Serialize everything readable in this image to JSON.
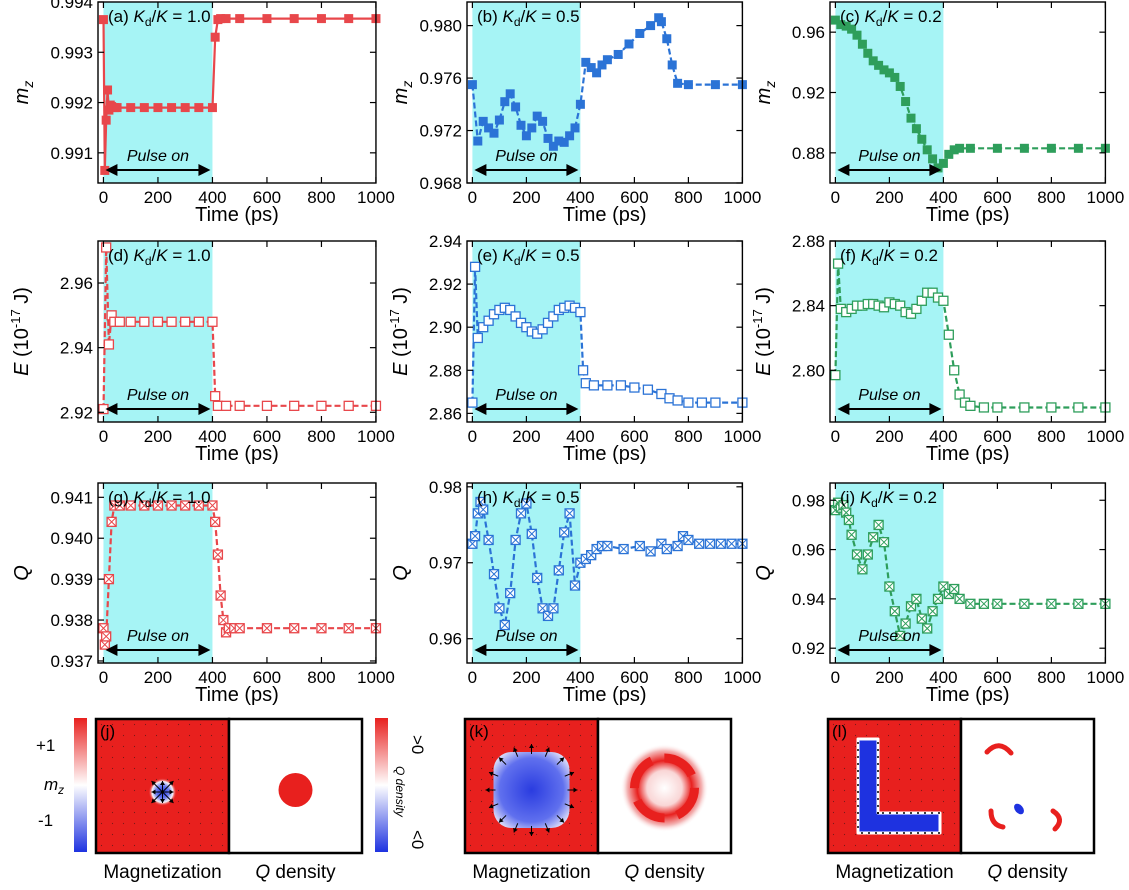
{
  "colors": {
    "red": "#E8474B",
    "blue": "#2B73D6",
    "green": "#2E9E5B",
    "pulse": "#A6F4F5",
    "map_red": "#E8201E",
    "map_blue": "#1E32E0"
  },
  "chart_data": [
    {
      "id": "a",
      "type": "line",
      "panel_label": "(a) ",
      "ratio": " = 1.0",
      "color": "red",
      "marker": "filled-square",
      "ylabel": "m",
      "ylabel_sub": "z",
      "xlabel": "Time (ps)",
      "ylim": [
        0.9904,
        0.994
      ],
      "yticks": [
        0.991,
        0.992,
        0.993,
        0.994
      ],
      "ytick_labels": [
        "0.991",
        "0.992",
        "0.993",
        "0.994"
      ],
      "xlim": [
        -20,
        1000
      ],
      "xticks": [
        0,
        200,
        400,
        600,
        800,
        1000
      ],
      "pulse": [
        0,
        400
      ],
      "pulse_label": "Pulse on",
      "x": [
        0,
        5,
        10,
        15,
        20,
        25,
        30,
        40,
        50,
        100,
        150,
        200,
        250,
        300,
        350,
        400,
        410,
        420,
        430,
        450,
        500,
        600,
        700,
        800,
        900,
        1000
      ],
      "y": [
        0.99365,
        0.99065,
        0.99165,
        0.99225,
        0.99185,
        0.99195,
        0.99192,
        0.9919,
        0.9919,
        0.9919,
        0.9919,
        0.9919,
        0.9919,
        0.9919,
        0.9919,
        0.9919,
        0.9933,
        0.99365,
        0.99367,
        0.99367,
        0.99367,
        0.99367,
        0.99367,
        0.99367,
        0.99367,
        0.99367
      ]
    },
    {
      "id": "b",
      "type": "line",
      "panel_label": "(b) ",
      "ratio": " = 0.5",
      "color": "blue",
      "marker": "filled-square",
      "ylabel": "m",
      "ylabel_sub": "z",
      "xlabel": "Time (ps)",
      "ylim": [
        0.968,
        0.9818
      ],
      "yticks": [
        0.968,
        0.972,
        0.976,
        0.98
      ],
      "ytick_labels": [
        "0.968",
        "0.972",
        "0.976",
        "0.980"
      ],
      "xlim": [
        -20,
        1000
      ],
      "xticks": [
        0,
        200,
        400,
        600,
        800,
        1000
      ],
      "pulse": [
        0,
        400
      ],
      "pulse_label": "Pulse on",
      "x": [
        0,
        20,
        40,
        60,
        80,
        100,
        120,
        140,
        160,
        180,
        200,
        220,
        240,
        260,
        280,
        300,
        320,
        340,
        360,
        380,
        400,
        420,
        440,
        460,
        480,
        500,
        540,
        580,
        620,
        660,
        690,
        700,
        720,
        740,
        760,
        800,
        900,
        1000
      ],
      "y": [
        0.9755,
        0.9712,
        0.9727,
        0.9722,
        0.9718,
        0.9728,
        0.9742,
        0.9748,
        0.9738,
        0.9724,
        0.9716,
        0.9722,
        0.9731,
        0.9727,
        0.9714,
        0.9708,
        0.9712,
        0.9711,
        0.9716,
        0.9722,
        0.974,
        0.9772,
        0.9768,
        0.9764,
        0.977,
        0.9774,
        0.9778,
        0.9786,
        0.9794,
        0.98,
        0.9806,
        0.9803,
        0.979,
        0.977,
        0.9756,
        0.9755,
        0.9755,
        0.9755
      ]
    },
    {
      "id": "c",
      "type": "line",
      "panel_label": "(c) ",
      "ratio": " = 0.2",
      "color": "green",
      "marker": "filled-square",
      "ylabel": "m",
      "ylabel_sub": "z",
      "xlabel": "Time (ps)",
      "ylim": [
        0.86,
        0.98
      ],
      "yticks": [
        0.88,
        0.92,
        0.96
      ],
      "ytick_labels": [
        "0.88",
        "0.92",
        "0.96"
      ],
      "xlim": [
        -20,
        1000
      ],
      "xticks": [
        0,
        200,
        400,
        600,
        800,
        1000
      ],
      "pulse": [
        0,
        400
      ],
      "pulse_label": "Pulse on",
      "x": [
        0,
        20,
        40,
        60,
        80,
        100,
        120,
        140,
        160,
        180,
        200,
        220,
        240,
        260,
        280,
        300,
        320,
        340,
        360,
        380,
        400,
        420,
        440,
        460,
        500,
        600,
        700,
        800,
        900,
        1000
      ],
      "y": [
        0.968,
        0.965,
        0.964,
        0.962,
        0.958,
        0.952,
        0.946,
        0.941,
        0.938,
        0.935,
        0.933,
        0.93,
        0.924,
        0.914,
        0.903,
        0.896,
        0.889,
        0.882,
        0.876,
        0.87,
        0.873,
        0.879,
        0.882,
        0.883,
        0.883,
        0.883,
        0.883,
        0.883,
        0.883,
        0.883
      ]
    },
    {
      "id": "d",
      "type": "line",
      "panel_label": "(d) ",
      "ratio": " = 1.0",
      "color": "red",
      "marker": "open-square",
      "ylabel": "E",
      "ylabel_unit": " (10",
      "ylabel_exp": "-17",
      "ylabel_tail": " J)",
      "xlabel": "Time (ps)",
      "ylim": [
        2.917,
        2.973
      ],
      "yticks": [
        2.92,
        2.94,
        2.96
      ],
      "ytick_labels": [
        "2.92",
        "2.94",
        "2.96"
      ],
      "xlim": [
        -20,
        1000
      ],
      "xticks": [
        0,
        200,
        400,
        600,
        800,
        1000
      ],
      "pulse": [
        0,
        400
      ],
      "pulse_label": "Pulse on",
      "x": [
        0,
        10,
        20,
        30,
        40,
        60,
        100,
        150,
        200,
        250,
        300,
        350,
        400,
        410,
        420,
        450,
        500,
        600,
        700,
        800,
        900,
        1000
      ],
      "y": [
        2.921,
        2.971,
        2.941,
        2.95,
        2.948,
        2.948,
        2.948,
        2.948,
        2.948,
        2.948,
        2.948,
        2.948,
        2.948,
        2.925,
        2.922,
        2.922,
        2.922,
        2.922,
        2.922,
        2.922,
        2.922,
        2.922
      ]
    },
    {
      "id": "e",
      "type": "line",
      "panel_label": "(e) ",
      "ratio": " = 0.5",
      "color": "blue",
      "marker": "open-square",
      "ylabel": "E",
      "ylabel_unit": " (10",
      "ylabel_exp": "-17",
      "ylabel_tail": " J)",
      "xlabel": "Time (ps)",
      "ylim": [
        2.856,
        2.94
      ],
      "yticks": [
        2.86,
        2.88,
        2.9,
        2.92,
        2.94
      ],
      "ytick_labels": [
        "2.86",
        "2.88",
        "2.90",
        "2.92",
        "2.94"
      ],
      "xlim": [
        -20,
        1000
      ],
      "xticks": [
        0,
        200,
        400,
        600,
        800,
        1000
      ],
      "pulse": [
        0,
        400
      ],
      "pulse_label": "Pulse on",
      "x": [
        0,
        10,
        20,
        40,
        60,
        80,
        100,
        120,
        140,
        160,
        180,
        200,
        220,
        240,
        260,
        280,
        300,
        320,
        340,
        360,
        380,
        400,
        410,
        420,
        450,
        500,
        550,
        600,
        650,
        700,
        730,
        760,
        800,
        850,
        900,
        1000
      ],
      "y": [
        2.865,
        2.928,
        2.895,
        2.9,
        2.903,
        2.906,
        2.908,
        2.909,
        2.908,
        2.905,
        2.902,
        2.9,
        2.898,
        2.897,
        2.899,
        2.902,
        2.905,
        2.908,
        2.909,
        2.91,
        2.909,
        2.907,
        2.88,
        2.874,
        2.873,
        2.873,
        2.873,
        2.872,
        2.871,
        2.869,
        2.867,
        2.866,
        2.865,
        2.865,
        2.865,
        2.865
      ]
    },
    {
      "id": "f",
      "type": "line",
      "panel_label": "(f) ",
      "ratio": " = 0.2",
      "color": "green",
      "marker": "open-square",
      "ylabel": "E",
      "ylabel_unit": " (10",
      "ylabel_exp": "-17",
      "ylabel_tail": " J)",
      "xlabel": "Time (ps)",
      "ylim": [
        2.768,
        2.88
      ],
      "yticks": [
        2.8,
        2.84,
        2.88
      ],
      "ytick_labels": [
        "2.80",
        "2.84",
        "2.88"
      ],
      "xlim": [
        -20,
        1000
      ],
      "xticks": [
        0,
        200,
        400,
        600,
        800,
        1000
      ],
      "pulse": [
        0,
        400
      ],
      "pulse_label": "Pulse on",
      "x": [
        0,
        10,
        20,
        40,
        60,
        80,
        100,
        120,
        140,
        160,
        180,
        200,
        220,
        240,
        260,
        280,
        300,
        320,
        340,
        360,
        380,
        400,
        420,
        440,
        460,
        480,
        500,
        550,
        600,
        700,
        800,
        900,
        1000
      ],
      "y": [
        2.797,
        2.866,
        2.838,
        2.836,
        2.838,
        2.84,
        2.84,
        2.841,
        2.841,
        2.84,
        2.839,
        2.842,
        2.841,
        2.84,
        2.836,
        2.835,
        2.838,
        2.843,
        2.848,
        2.848,
        2.845,
        2.843,
        2.822,
        2.8,
        2.785,
        2.78,
        2.778,
        2.777,
        2.777,
        2.777,
        2.777,
        2.777,
        2.777
      ]
    },
    {
      "id": "g",
      "type": "line",
      "panel_label": "(g) ",
      "ratio": " = 1.0",
      "color": "red",
      "marker": "cross-square",
      "ylabel": "Q",
      "xlabel": "Time (ps)",
      "ylim": [
        0.93695,
        0.94135
      ],
      "yticks": [
        0.937,
        0.938,
        0.939,
        0.94,
        0.941
      ],
      "ytick_labels": [
        "0.937",
        "0.938",
        "0.939",
        "0.940",
        "0.941"
      ],
      "xlim": [
        -20,
        1000
      ],
      "xticks": [
        0,
        200,
        400,
        600,
        800,
        1000
      ],
      "pulse": [
        0,
        400
      ],
      "pulse_label": "Pulse on",
      "x": [
        0,
        5,
        10,
        20,
        30,
        40,
        60,
        100,
        150,
        200,
        250,
        300,
        350,
        400,
        410,
        420,
        430,
        440,
        450,
        460,
        480,
        500,
        600,
        700,
        800,
        900,
        1000
      ],
      "y": [
        0.9378,
        0.9374,
        0.9376,
        0.939,
        0.9404,
        0.9408,
        0.9408,
        0.9408,
        0.9408,
        0.9408,
        0.9408,
        0.9408,
        0.9408,
        0.9408,
        0.9404,
        0.9396,
        0.9386,
        0.938,
        0.9377,
        0.9378,
        0.9378,
        0.9378,
        0.9378,
        0.9378,
        0.9378,
        0.9378,
        0.9378
      ]
    },
    {
      "id": "h",
      "type": "line",
      "panel_label": "(h) ",
      "ratio": " = 0.5",
      "color": "blue",
      "marker": "cross-square",
      "ylabel": "Q",
      "xlabel": "Time (ps)",
      "ylim": [
        0.9568,
        0.9805
      ],
      "yticks": [
        0.96,
        0.97,
        0.98
      ],
      "ytick_labels": [
        "0.96",
        "0.97",
        "0.98"
      ],
      "xlim": [
        -20,
        1000
      ],
      "xticks": [
        0,
        200,
        400,
        600,
        800,
        1000
      ],
      "pulse": [
        0,
        400
      ],
      "pulse_label": "Pulse on",
      "x": [
        0,
        10,
        20,
        30,
        40,
        60,
        80,
        100,
        120,
        140,
        160,
        180,
        200,
        220,
        240,
        260,
        280,
        300,
        320,
        340,
        360,
        380,
        400,
        420,
        440,
        460,
        480,
        500,
        560,
        620,
        660,
        700,
        720,
        760,
        780,
        800,
        840,
        880,
        920,
        960,
        1000
      ],
      "y": [
        0.9725,
        0.9735,
        0.9765,
        0.978,
        0.977,
        0.973,
        0.9685,
        0.964,
        0.9618,
        0.966,
        0.973,
        0.9765,
        0.9778,
        0.9738,
        0.968,
        0.964,
        0.963,
        0.964,
        0.969,
        0.974,
        0.9765,
        0.967,
        0.97,
        0.9705,
        0.971,
        0.9718,
        0.9722,
        0.9722,
        0.9718,
        0.9722,
        0.9715,
        0.9725,
        0.9718,
        0.9722,
        0.9735,
        0.973,
        0.9725,
        0.9725,
        0.9725,
        0.9725,
        0.9725
      ]
    },
    {
      "id": "i",
      "type": "line",
      "panel_label": "(i) ",
      "ratio": " = 0.2",
      "color": "green",
      "marker": "cross-square",
      "ylabel": "Q",
      "xlabel": "Time (ps)",
      "ylim": [
        0.914,
        0.987
      ],
      "yticks": [
        0.92,
        0.94,
        0.96,
        0.98
      ],
      "ytick_labels": [
        "0.92",
        "0.94",
        "0.96",
        "0.98"
      ],
      "xlim": [
        -20,
        1000
      ],
      "xticks": [
        0,
        200,
        400,
        600,
        800,
        1000
      ],
      "pulse": [
        0,
        400
      ],
      "pulse_label": "Pulse on",
      "x": [
        0,
        10,
        20,
        30,
        40,
        50,
        60,
        80,
        100,
        120,
        140,
        160,
        180,
        200,
        220,
        240,
        260,
        280,
        300,
        320,
        340,
        360,
        380,
        400,
        420,
        440,
        460,
        500,
        550,
        600,
        700,
        800,
        900,
        1000
      ],
      "y": [
        0.976,
        0.979,
        0.977,
        0.978,
        0.975,
        0.972,
        0.966,
        0.958,
        0.952,
        0.958,
        0.965,
        0.97,
        0.963,
        0.945,
        0.935,
        0.925,
        0.93,
        0.937,
        0.94,
        0.932,
        0.928,
        0.935,
        0.94,
        0.945,
        0.942,
        0.944,
        0.94,
        0.938,
        0.938,
        0.938,
        0.938,
        0.938,
        0.938,
        0.938
      ]
    }
  ],
  "symbols": {
    "K": "K",
    "d": "d",
    "slash": "/",
    "m": "m",
    "z": "z"
  },
  "maps": {
    "captions": {
      "magnetization": "Magnetization",
      "q_pre": "Q",
      "q_post": " density"
    },
    "labels": [
      "(j)",
      "(k)",
      "(l)"
    ],
    "mz_colorbar": {
      "top": "+1",
      "bottom": "-1",
      "label_m": "m",
      "label_z": "z"
    },
    "q_colorbar": {
      "top": ">0",
      "bottom": "<0",
      "label": "Q density"
    }
  }
}
